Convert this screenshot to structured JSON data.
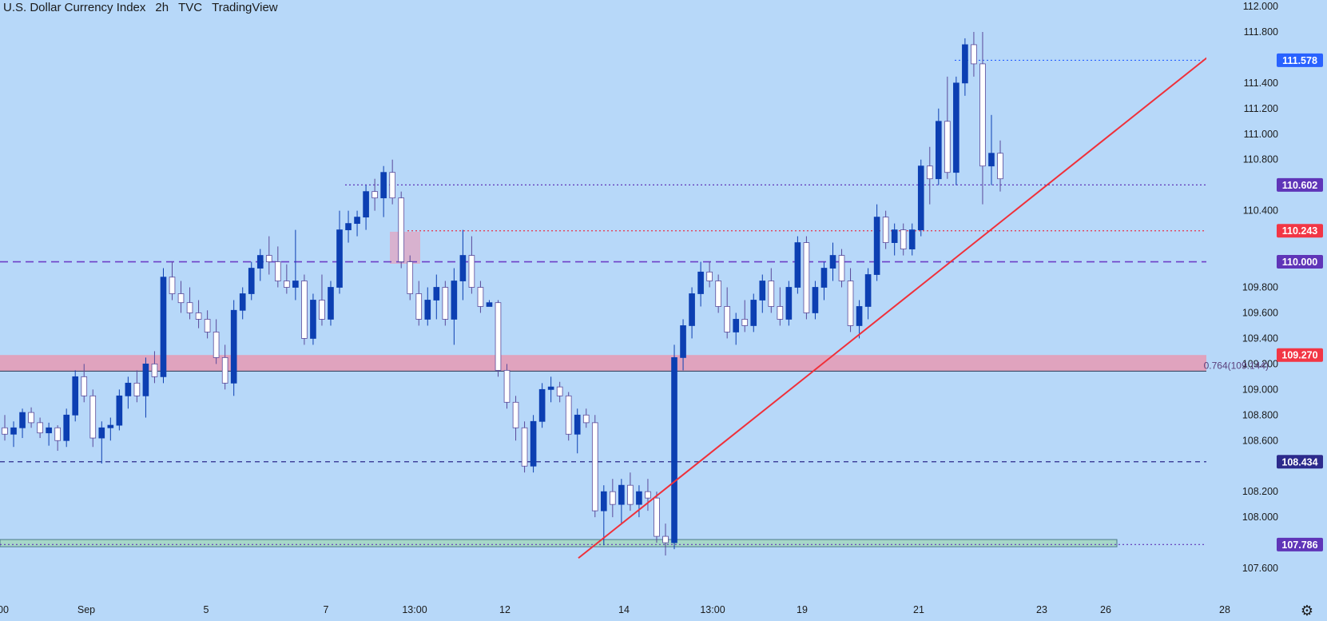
{
  "header": {
    "symbol": "U.S. Dollar Currency Index",
    "interval": "2h",
    "source": "TVC",
    "platform": "TradingView"
  },
  "colors": {
    "background": "#b7d8f9",
    "bull_candle": "#0c3fb2",
    "bear_candle": "#ffffff",
    "trendline": "#f0303a",
    "resistance_dotted": "#e8324a",
    "purple_dashed": "#6e3fc8",
    "zone_fill": "#e79ab4",
    "bottom_zone_fill": "#a6d7c8",
    "label_blue": "#2962ff",
    "label_purple": "#5f35b8",
    "label_red": "#f23645",
    "label_navy": "#2c2a8c"
  },
  "axis": {
    "y_ticks": [
      "112.000",
      "111.800",
      "111.400",
      "111.200",
      "111.000",
      "110.800",
      "110.400",
      "109.800",
      "109.600",
      "109.400",
      "109.200",
      "109.000",
      "108.800",
      "108.600",
      "108.200",
      "108.000",
      "107.600"
    ],
    "x_ticks": [
      "00",
      "Sep",
      "5",
      "7",
      "13:00",
      "12",
      "14",
      "13:00",
      "19",
      "21",
      "23",
      "26",
      "28"
    ]
  },
  "price_labels": [
    {
      "value": "111.578",
      "color": "#2962ff"
    },
    {
      "value": "110.602",
      "color": "#5f35b8"
    },
    {
      "value": "110.243",
      "color": "#f23645"
    },
    {
      "value": "110.000",
      "color": "#5f35b8"
    },
    {
      "value": "109.270",
      "color": "#f23645"
    },
    {
      "value": "108.434",
      "color": "#2c2a8c"
    },
    {
      "value": "107.786",
      "color": "#5f35b8"
    }
  ],
  "fib_label": "0.764(109.144)",
  "chart_data": {
    "type": "candlestick",
    "title": "U.S. Dollar Currency Index",
    "interval": "2h",
    "ylim": [
      107.45,
      112.05
    ],
    "horizontal_levels": [
      {
        "price": 111.578,
        "style": "dotted",
        "color": "#2962ff"
      },
      {
        "price": 110.602,
        "style": "dotted",
        "color": "#5f35b8"
      },
      {
        "price": 110.243,
        "style": "dotted",
        "color": "#e8324a"
      },
      {
        "price": 110.0,
        "style": "dashed",
        "color": "#6e3fc8"
      },
      {
        "price": 108.434,
        "style": "dashed",
        "color": "#2c2a8c"
      },
      {
        "price": 107.786,
        "style": "dotted",
        "color": "#5f35b8"
      }
    ],
    "zones": [
      {
        "from": 109.144,
        "to": 109.27,
        "color": "#e79ab4"
      },
      {
        "from": 107.75,
        "to": 107.8,
        "color": "#a6d7c8"
      }
    ],
    "trendline": {
      "from": {
        "bar": 0.724,
        "price": 107.68
      },
      "to": {
        "bar": 1.0,
        "price": 112.03
      }
    },
    "fib_level": {
      "ratio": 0.764,
      "price": 109.144
    },
    "candles": [
      [
        108.7,
        108.8,
        108.6,
        108.65
      ],
      [
        108.65,
        108.75,
        108.55,
        108.7
      ],
      [
        108.7,
        108.85,
        108.62,
        108.82
      ],
      [
        108.82,
        108.86,
        108.7,
        108.74
      ],
      [
        108.74,
        108.78,
        108.62,
        108.66
      ],
      [
        108.66,
        108.74,
        108.56,
        108.7
      ],
      [
        108.7,
        108.72,
        108.52,
        108.6
      ],
      [
        108.6,
        108.85,
        108.55,
        108.8
      ],
      [
        108.8,
        109.15,
        108.75,
        109.1
      ],
      [
        109.1,
        109.2,
        108.9,
        108.95
      ],
      [
        108.95,
        109.0,
        108.55,
        108.62
      ],
      [
        108.62,
        108.75,
        108.42,
        108.7
      ],
      [
        108.7,
        108.78,
        108.6,
        108.72
      ],
      [
        108.72,
        109.0,
        108.68,
        108.95
      ],
      [
        108.95,
        109.1,
        108.85,
        109.05
      ],
      [
        109.05,
        109.15,
        108.9,
        108.95
      ],
      [
        108.95,
        109.25,
        108.78,
        109.2
      ],
      [
        109.2,
        109.3,
        109.05,
        109.1
      ],
      [
        109.1,
        109.95,
        109.05,
        109.88
      ],
      [
        109.88,
        110.0,
        109.7,
        109.75
      ],
      [
        109.75,
        109.85,
        109.6,
        109.68
      ],
      [
        109.68,
        109.8,
        109.55,
        109.6
      ],
      [
        109.6,
        109.7,
        109.48,
        109.55
      ],
      [
        109.55,
        109.62,
        109.4,
        109.45
      ],
      [
        109.45,
        109.55,
        109.2,
        109.25
      ],
      [
        109.25,
        109.35,
        109.0,
        109.05
      ],
      [
        109.05,
        109.7,
        108.95,
        109.62
      ],
      [
        109.62,
        109.8,
        109.55,
        109.75
      ],
      [
        109.75,
        110.0,
        109.7,
        109.95
      ],
      [
        109.95,
        110.1,
        109.85,
        110.05
      ],
      [
        110.05,
        110.2,
        109.9,
        110.0
      ],
      [
        110.0,
        110.12,
        109.8,
        109.85
      ],
      [
        109.85,
        109.98,
        109.75,
        109.8
      ],
      [
        109.8,
        110.25,
        109.7,
        109.85
      ],
      [
        109.85,
        109.9,
        109.35,
        109.4
      ],
      [
        109.4,
        109.75,
        109.35,
        109.7
      ],
      [
        109.7,
        109.9,
        109.5,
        109.55
      ],
      [
        109.55,
        109.85,
        109.5,
        109.8
      ],
      [
        109.8,
        110.4,
        109.75,
        110.25
      ],
      [
        110.25,
        110.4,
        110.15,
        110.3
      ],
      [
        110.3,
        110.4,
        110.2,
        110.35
      ],
      [
        110.35,
        110.6,
        110.25,
        110.55
      ],
      [
        110.55,
        110.65,
        110.4,
        110.5
      ],
      [
        110.5,
        110.75,
        110.35,
        110.7
      ],
      [
        110.7,
        110.8,
        110.45,
        110.5
      ],
      [
        110.5,
        110.55,
        109.95,
        110.0
      ],
      [
        110.0,
        110.05,
        109.7,
        109.75
      ],
      [
        109.75,
        109.85,
        109.5,
        109.55
      ],
      [
        109.55,
        109.8,
        109.5,
        109.7
      ],
      [
        109.7,
        109.9,
        109.55,
        109.8
      ],
      [
        109.8,
        109.85,
        109.5,
        109.55
      ],
      [
        109.55,
        109.95,
        109.35,
        109.85
      ],
      [
        109.85,
        110.25,
        109.7,
        110.05
      ],
      [
        110.05,
        110.2,
        109.75,
        109.8
      ],
      [
        109.8,
        109.85,
        109.6,
        109.65
      ],
      [
        109.65,
        109.7,
        109.65,
        109.68
      ],
      [
        109.68,
        109.7,
        109.1,
        109.15
      ],
      [
        109.15,
        109.2,
        108.85,
        108.9
      ],
      [
        108.9,
        108.95,
        108.6,
        108.7
      ],
      [
        108.7,
        108.75,
        108.35,
        108.4
      ],
      [
        108.4,
        108.8,
        108.35,
        108.75
      ],
      [
        108.75,
        109.05,
        108.7,
        109.0
      ],
      [
        109.0,
        109.1,
        108.9,
        109.02
      ],
      [
        109.02,
        109.06,
        108.9,
        108.95
      ],
      [
        108.95,
        108.98,
        108.6,
        108.65
      ],
      [
        108.65,
        108.85,
        108.5,
        108.8
      ],
      [
        108.8,
        108.85,
        108.7,
        108.74
      ],
      [
        108.74,
        108.8,
        108.0,
        108.05
      ],
      [
        108.05,
        108.25,
        107.78,
        108.2
      ],
      [
        108.2,
        108.3,
        108.0,
        108.1
      ],
      [
        108.1,
        108.3,
        107.95,
        108.25
      ],
      [
        108.25,
        108.35,
        108.05,
        108.1
      ],
      [
        108.1,
        108.25,
        108.0,
        108.2
      ],
      [
        108.2,
        108.3,
        108.05,
        108.15
      ],
      [
        108.15,
        108.2,
        107.8,
        107.85
      ],
      [
        107.85,
        107.95,
        107.7,
        107.8
      ],
      [
        107.8,
        109.35,
        107.75,
        109.25
      ],
      [
        109.25,
        109.55,
        109.15,
        109.5
      ],
      [
        109.5,
        109.8,
        109.4,
        109.75
      ],
      [
        109.75,
        110.0,
        109.65,
        109.92
      ],
      [
        109.92,
        110.0,
        109.8,
        109.85
      ],
      [
        109.85,
        109.9,
        109.6,
        109.65
      ],
      [
        109.65,
        109.8,
        109.4,
        109.45
      ],
      [
        109.45,
        109.6,
        109.35,
        109.55
      ],
      [
        109.55,
        109.7,
        109.45,
        109.5
      ],
      [
        109.5,
        109.75,
        109.45,
        109.7
      ],
      [
        109.7,
        109.9,
        109.6,
        109.85
      ],
      [
        109.85,
        109.95,
        109.6,
        109.65
      ],
      [
        109.65,
        109.8,
        109.5,
        109.55
      ],
      [
        109.55,
        109.85,
        109.5,
        109.8
      ],
      [
        109.8,
        110.2,
        109.75,
        110.15
      ],
      [
        110.15,
        110.2,
        109.55,
        109.6
      ],
      [
        109.6,
        109.85,
        109.55,
        109.8
      ],
      [
        109.8,
        110.0,
        109.7,
        109.95
      ],
      [
        109.95,
        110.15,
        109.85,
        110.05
      ],
      [
        110.05,
        110.1,
        109.8,
        109.85
      ],
      [
        109.85,
        109.95,
        109.45,
        109.5
      ],
      [
        109.5,
        109.7,
        109.4,
        109.65
      ],
      [
        109.65,
        109.95,
        109.55,
        109.9
      ],
      [
        109.9,
        110.45,
        109.85,
        110.35
      ],
      [
        110.35,
        110.4,
        110.1,
        110.15
      ],
      [
        110.15,
        110.3,
        110.05,
        110.25
      ],
      [
        110.25,
        110.3,
        110.05,
        110.1
      ],
      [
        110.1,
        110.3,
        110.05,
        110.25
      ],
      [
        110.25,
        110.8,
        110.2,
        110.75
      ],
      [
        110.75,
        110.9,
        110.45,
        110.65
      ],
      [
        110.65,
        111.2,
        110.6,
        111.1
      ],
      [
        111.1,
        111.45,
        110.65,
        110.7
      ],
      [
        110.7,
        111.45,
        110.6,
        111.4
      ],
      [
        111.4,
        111.75,
        111.3,
        111.7
      ],
      [
        111.7,
        111.8,
        111.45,
        111.55
      ],
      [
        111.55,
        111.8,
        110.45,
        110.75
      ],
      [
        110.75,
        111.15,
        110.6,
        110.85
      ],
      [
        110.85,
        110.95,
        110.55,
        110.65
      ]
    ]
  }
}
